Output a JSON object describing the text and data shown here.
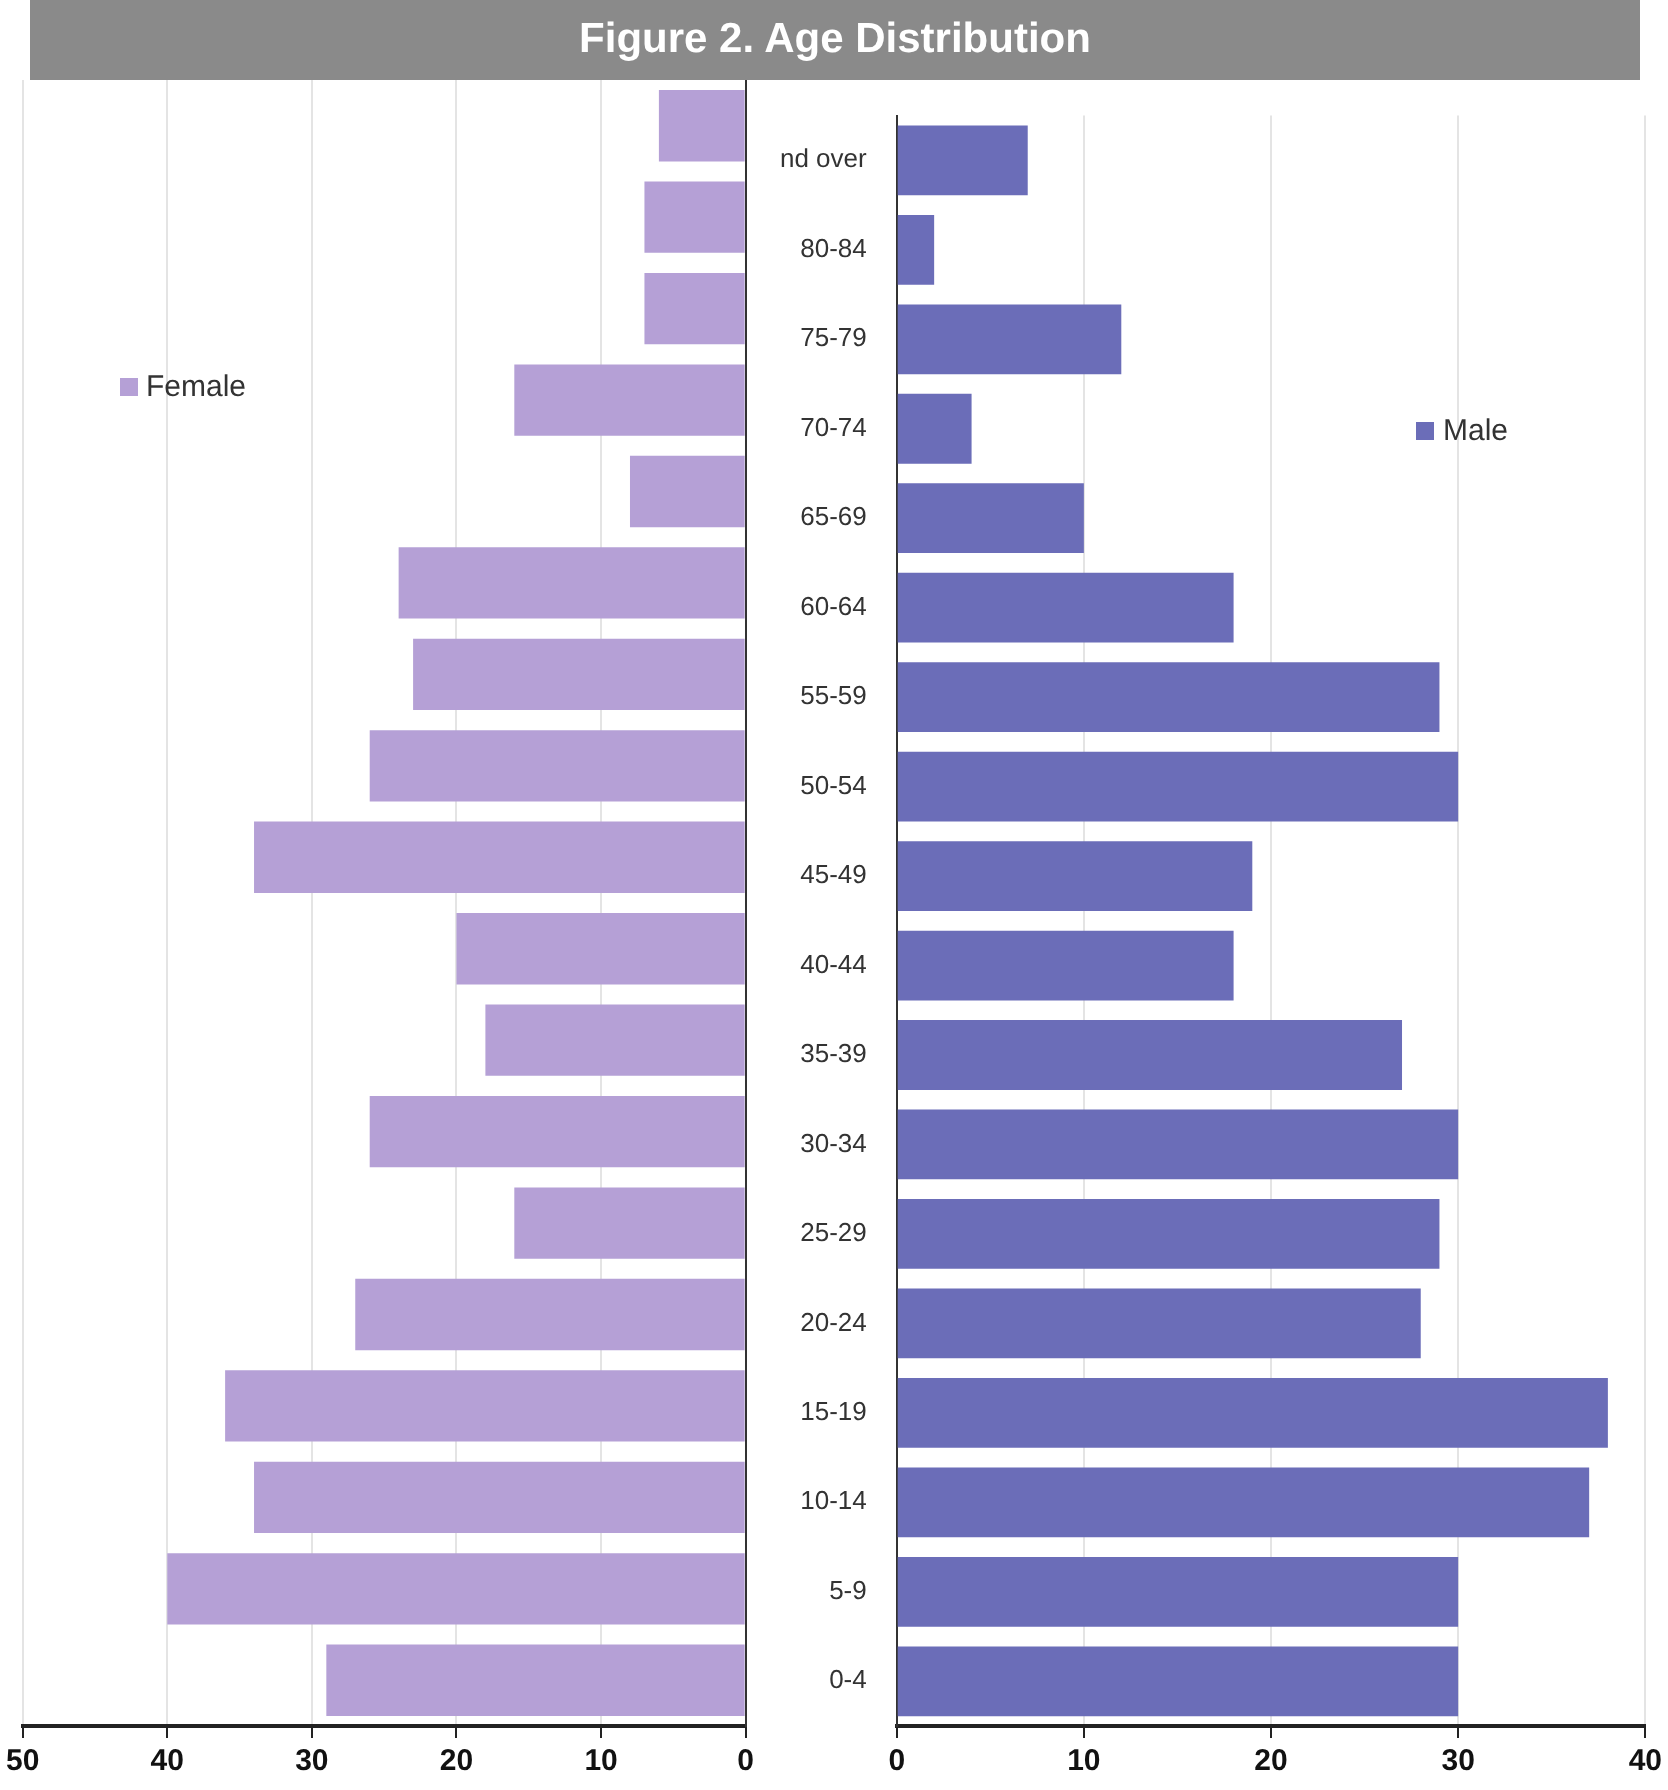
{
  "chart_data": [
    {
      "type": "bar",
      "title": "Figure 2. Age Distribution",
      "orientation": "horizontal",
      "categories": [
        null,
        null,
        null,
        null,
        null,
        null,
        null,
        null,
        null,
        null,
        null,
        null,
        null,
        null,
        null,
        null,
        null,
        null
      ],
      "series": [
        {
          "name": "Female",
          "color": "#b5a0d6",
          "values": [
            6,
            7,
            7,
            16,
            8,
            24,
            23,
            26,
            34,
            20,
            18,
            26,
            16,
            27,
            36,
            34,
            40,
            29
          ]
        }
      ],
      "xlim": [
        50,
        0
      ],
      "xticks": [
        50,
        40,
        30,
        20,
        10,
        0
      ],
      "grid": "x",
      "legend": "top left",
      "tick_labels": "x"
    },
    {
      "type": "bar",
      "orientation": "horizontal",
      "categories": [
        "nd over",
        "80-84",
        "75-79",
        "70-74",
        "65-69",
        "60-64",
        "55-59",
        "50-54",
        "45-49",
        "40-44",
        "35-39",
        "30-34",
        "25-29",
        "20-24",
        "15-19",
        "10-14",
        "5-9",
        "0-4"
      ],
      "series": [
        {
          "name": "Male",
          "color": "#6b6db8",
          "values": [
            7,
            2,
            12,
            4,
            10,
            18,
            29,
            30,
            19,
            18,
            27,
            30,
            29,
            28,
            38,
            37,
            30,
            30
          ]
        }
      ],
      "xlim": [
        0,
        40
      ],
      "xticks": [
        0,
        10,
        20,
        30,
        40
      ],
      "grid": "x",
      "legend": "top right"
    }
  ]
}
